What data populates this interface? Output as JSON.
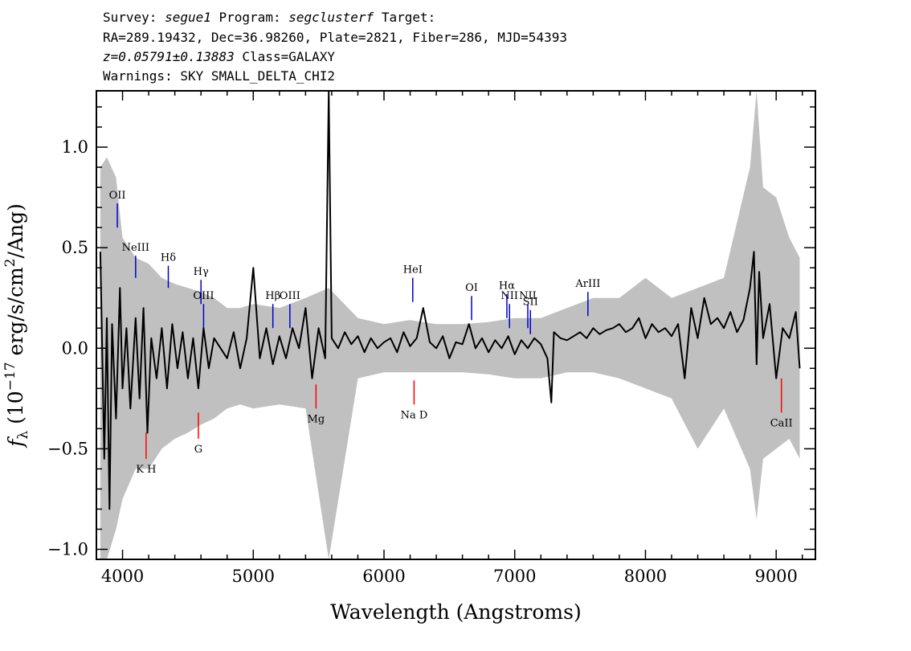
{
  "header": {
    "line1": {
      "survey_label": "Survey:",
      "survey": "segue1",
      "program_label": "Program:",
      "program": "segclusterf",
      "target_label": "Target:"
    },
    "line2": "RA=289.19432, Dec=36.98260, Plate=2821, Fiber=286, MJD=54393",
    "line3": {
      "redshift": "z=0.05791±0.13883",
      "class": "Class=GALAXY"
    },
    "line4": "Warnings: SKY SMALL_DELTA_CHI2"
  },
  "colors": {
    "flux": "#000000",
    "error_band": "#c0c0c0",
    "emission_marker": "#0000cc",
    "absorption_marker": "#ff0000",
    "axis": "#000000"
  },
  "chart_data": {
    "type": "line",
    "xlabel": "Wavelength (Angstroms)",
    "ylabel": "f_λ (10^-17 erg/s/cm²/Ang)",
    "xlim": [
      3800,
      9300
    ],
    "ylim": [
      -1.05,
      1.28
    ],
    "xticks": [
      4000,
      5000,
      6000,
      7000,
      8000,
      9000
    ],
    "xtick_labels": [
      "4000",
      "5000",
      "6000",
      "7000",
      "8000",
      "9000"
    ],
    "yticks": [
      -1.0,
      -0.5,
      0.0,
      0.5,
      1.0
    ],
    "ytick_labels": [
      "−1.0",
      "−0.5",
      "0.0",
      "0.5",
      "1.0"
    ],
    "grid": false,
    "series": [
      {
        "role": "flux",
        "x": [
          3830,
          3860,
          3880,
          3900,
          3920,
          3950,
          3980,
          4000,
          4030,
          4060,
          4100,
          4130,
          4160,
          4190,
          4220,
          4260,
          4300,
          4340,
          4380,
          4420,
          4460,
          4500,
          4540,
          4580,
          4620,
          4660,
          4700,
          4750,
          4800,
          4850,
          4900,
          4950,
          5000,
          5050,
          5100,
          5150,
          5200,
          5250,
          5300,
          5350,
          5400,
          5450,
          5500,
          5550,
          5577,
          5600,
          5650,
          5700,
          5750,
          5800,
          5850,
          5900,
          5950,
          6000,
          6050,
          6100,
          6150,
          6200,
          6250,
          6300,
          6350,
          6400,
          6450,
          6500,
          6550,
          6600,
          6650,
          6700,
          6750,
          6800,
          6850,
          6900,
          6950,
          7000,
          7050,
          7100,
          7150,
          7200,
          7250,
          7280,
          7300,
          7350,
          7400,
          7450,
          7500,
          7550,
          7600,
          7650,
          7700,
          7750,
          7800,
          7850,
          7900,
          7950,
          8000,
          8050,
          8100,
          8150,
          8200,
          8250,
          8300,
          8350,
          8400,
          8450,
          8500,
          8550,
          8600,
          8650,
          8700,
          8750,
          8800,
          8830,
          8850,
          8870,
          8900,
          8950,
          9000,
          9050,
          9100,
          9150,
          9180
        ],
        "y": [
          0.48,
          -0.55,
          0.15,
          -0.8,
          0.12,
          -0.35,
          0.3,
          -0.2,
          0.1,
          -0.3,
          0.15,
          -0.25,
          0.2,
          -0.42,
          0.05,
          -0.15,
          0.1,
          -0.2,
          0.12,
          -0.1,
          0.08,
          -0.15,
          0.05,
          -0.2,
          0.1,
          -0.1,
          0.05,
          0.0,
          -0.05,
          0.08,
          -0.1,
          0.05,
          0.4,
          -0.05,
          0.1,
          -0.08,
          0.06,
          -0.05,
          0.1,
          0.0,
          0.2,
          -0.15,
          0.1,
          -0.05,
          1.28,
          0.05,
          0.0,
          0.08,
          0.02,
          0.06,
          -0.02,
          0.05,
          0.0,
          0.03,
          0.05,
          -0.02,
          0.08,
          0.01,
          0.05,
          0.2,
          0.03,
          0.0,
          0.06,
          -0.05,
          0.03,
          0.02,
          0.12,
          0.0,
          0.05,
          -0.02,
          0.04,
          0.0,
          0.06,
          -0.03,
          0.04,
          0.0,
          0.05,
          0.02,
          -0.05,
          -0.27,
          0.08,
          0.05,
          0.04,
          0.06,
          0.08,
          0.05,
          0.1,
          0.07,
          0.09,
          0.1,
          0.12,
          0.08,
          0.1,
          0.15,
          0.05,
          0.12,
          0.08,
          0.1,
          0.06,
          0.12,
          -0.15,
          0.2,
          0.05,
          0.25,
          0.12,
          0.15,
          0.1,
          0.18,
          0.08,
          0.14,
          0.3,
          0.48,
          -0.08,
          0.38,
          0.05,
          0.22,
          -0.15,
          0.1,
          0.05,
          0.18,
          -0.1
        ]
      },
      {
        "role": "error_band",
        "x": [
          3830,
          3880,
          3950,
          4000,
          4100,
          4200,
          4300,
          4400,
          4500,
          4600,
          4700,
          4800,
          4900,
          5000,
          5200,
          5400,
          5577,
          5800,
          6000,
          6200,
          6400,
          6600,
          6800,
          7000,
          7200,
          7400,
          7600,
          7800,
          8000,
          8200,
          8400,
          8600,
          8800,
          8850,
          8900,
          9000,
          9100,
          9180
        ],
        "upper": [
          0.9,
          0.95,
          0.85,
          0.55,
          0.45,
          0.42,
          0.35,
          0.32,
          0.3,
          0.28,
          0.25,
          0.2,
          0.2,
          0.22,
          0.2,
          0.25,
          0.3,
          0.15,
          0.12,
          0.14,
          0.12,
          0.12,
          0.13,
          0.15,
          0.15,
          0.2,
          0.25,
          0.25,
          0.35,
          0.25,
          0.3,
          0.35,
          0.9,
          1.28,
          0.8,
          0.75,
          0.55,
          0.45
        ],
        "lower": [
          -1.05,
          -1.05,
          -0.9,
          -0.75,
          -0.6,
          -0.6,
          -0.5,
          -0.45,
          -0.42,
          -0.38,
          -0.35,
          -0.3,
          -0.28,
          -0.3,
          -0.28,
          -0.3,
          -1.05,
          -0.15,
          -0.12,
          -0.12,
          -0.12,
          -0.12,
          -0.13,
          -0.15,
          -0.15,
          -0.12,
          -0.12,
          -0.15,
          -0.2,
          -0.25,
          -0.5,
          -0.3,
          -0.6,
          -0.85,
          -0.55,
          -0.5,
          -0.45,
          -0.55
        ]
      }
    ],
    "emission_lines": [
      {
        "label": "OII",
        "x": 3960,
        "ybot": 0.6,
        "ytop": 0.72
      },
      {
        "label": "NeIII",
        "x": 4100,
        "ybot": 0.35,
        "ytop": 0.46
      },
      {
        "label": "Hδ",
        "x": 4350,
        "ybot": 0.3,
        "ytop": 0.41
      },
      {
        "label": "Hγ",
        "x": 4600,
        "ybot": 0.22,
        "ytop": 0.34
      },
      {
        "label": "OIII",
        "x": 4620,
        "ybot": 0.1,
        "ytop": 0.22
      },
      {
        "label": "Hβ",
        "x": 5150,
        "ybot": 0.1,
        "ytop": 0.22
      },
      {
        "label": "OIII",
        "x": 5280,
        "ybot": 0.1,
        "ytop": 0.22
      },
      {
        "label": "HeI",
        "x": 6220,
        "ybot": 0.23,
        "ytop": 0.35
      },
      {
        "label": "OI",
        "x": 6670,
        "ybot": 0.14,
        "ytop": 0.26
      },
      {
        "label": "NII",
        "x": 6960,
        "ybot": 0.1,
        "ytop": 0.22
      },
      {
        "label": "Hα",
        "x": 6940,
        "ybot": 0.15,
        "ytop": 0.27
      },
      {
        "label": "NII",
        "x": 7100,
        "ybot": 0.1,
        "ytop": 0.22
      },
      {
        "label": "SII",
        "x": 7120,
        "ybot": 0.07,
        "ytop": 0.19
      },
      {
        "label": "ArIII",
        "x": 7560,
        "ybot": 0.16,
        "ytop": 0.28
      }
    ],
    "absorption_lines": [
      {
        "label": "K H",
        "x": 4180,
        "ytop": -0.42,
        "ybot": -0.55
      },
      {
        "label": "G",
        "x": 4580,
        "ytop": -0.32,
        "ybot": -0.45
      },
      {
        "label": "Mg",
        "x": 5480,
        "ytop": -0.18,
        "ybot": -0.3
      },
      {
        "label": "Na D",
        "x": 6230,
        "ytop": -0.16,
        "ybot": -0.28
      },
      {
        "label": "CaII",
        "x": 9040,
        "ytop": -0.15,
        "ybot": -0.32
      }
    ]
  }
}
